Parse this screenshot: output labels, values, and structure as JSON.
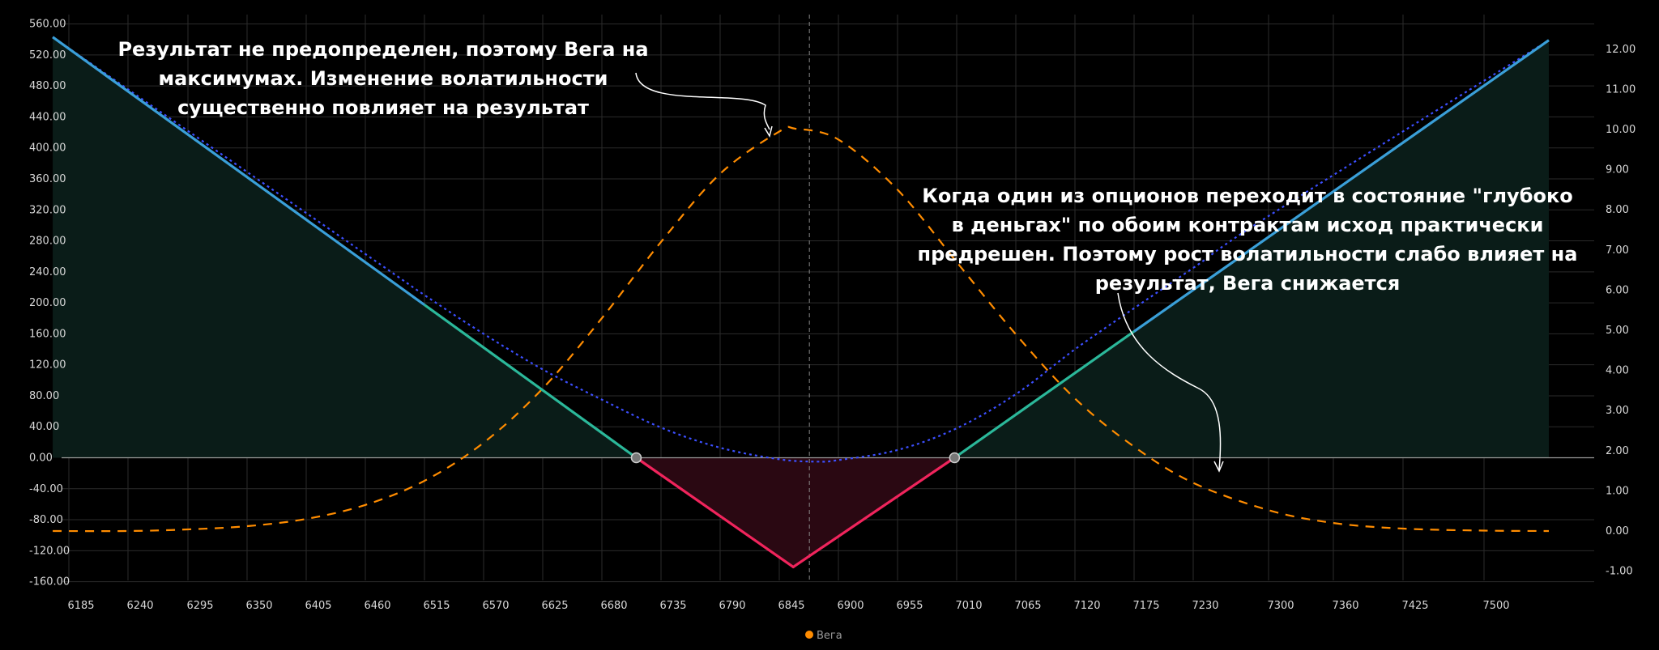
{
  "chart_data": {
    "type": "line",
    "x_ticks": [
      6185,
      6240,
      6295,
      6350,
      6405,
      6460,
      6515,
      6570,
      6625,
      6680,
      6735,
      6790,
      6845,
      6900,
      6955,
      7010,
      7065,
      7120,
      7175,
      7230,
      7300,
      7360,
      7425,
      7500
    ],
    "left_ticks": [
      "560.00",
      "520.00",
      "480.00",
      "440.00",
      "400.00",
      "360.00",
      "320.00",
      "280.00",
      "240.00",
      "200.00",
      "160.00",
      "120.00",
      "80.00",
      "40.00",
      "0.00",
      "-40.00",
      "-80.00",
      "-120.00",
      "-160.00"
    ],
    "right_ticks": [
      "12.00",
      "11.00",
      "10.00",
      "9.00",
      "8.00",
      "7.00",
      "6.00",
      "5.00",
      "4.00",
      "3.00",
      "2.00",
      "1.00",
      "0.00",
      "-1.00"
    ],
    "xlim": [
      6170,
      7560
    ],
    "ylim_left": [
      -160,
      560
    ],
    "ylim_right": [
      -1,
      12
    ],
    "strikes_breakeven": [
      6712,
      7008
    ],
    "expiry_min": {
      "x": 6858,
      "y": -141
    },
    "payoff_line": {
      "x": [
        6170,
        6712,
        6858,
        7008,
        7560
      ],
      "y": [
        543,
        0,
        -141,
        0,
        539
      ]
    },
    "current_pnl_curve": {
      "x": [
        6170,
        6460,
        6515,
        6570,
        6625,
        6680,
        6735,
        6790,
        6845,
        6880,
        6900,
        6955,
        7010,
        7065,
        7120,
        7175,
        7230,
        7300,
        7560
      ],
      "y": [
        543,
        263,
        210,
        160,
        114,
        75,
        39,
        13,
        -2,
        -5,
        -3,
        10,
        38,
        82,
        140,
        193,
        245,
        312,
        539
      ]
    },
    "current_price": 6873,
    "series": [
      {
        "name": "Вега",
        "color": "#ff8c00",
        "x": [
          6170,
          6240,
          6295,
          6350,
          6405,
          6460,
          6515,
          6570,
          6625,
          6680,
          6735,
          6790,
          6845,
          6860,
          6900,
          6955,
          7010,
          7065,
          7120,
          7175,
          7230,
          7300,
          7360,
          7425,
          7500,
          7560
        ],
        "y": [
          0,
          0,
          0.04,
          0.12,
          0.3,
          0.65,
          1.25,
          2.2,
          3.55,
          5.3,
          7.2,
          8.9,
          9.95,
          10.02,
          9.75,
          8.5,
          6.7,
          4.9,
          3.3,
          2.1,
          1.2,
          0.52,
          0.2,
          0.06,
          0.01,
          0
        ]
      }
    ],
    "annotations": [
      {
        "lines": [
          "Результат не предопределен, поэтому Вега на",
          "максимумах. Изменение волатильности",
          "существенно повлияет на результат"
        ]
      },
      {
        "lines": [
          "Когда один из опционов переходит в состояние \"глубоко",
          "в деньгах\" по обоим контрактам исход практически",
          "предрешен. Поэтому рост волатильности слабо влияет на",
          "результат, Вега снижается"
        ]
      }
    ],
    "legend": {
      "position": "bottom-center",
      "label": "Вега"
    },
    "grid": true
  },
  "colors": {
    "background": "#000000",
    "grid": "#2b2b2b",
    "zero_line": "#9a9a9a",
    "profit_line": "#2bb89a",
    "profit_line_outer": "#3a9fd8",
    "loss_line": "#f0245c",
    "profit_fill": "#0a1c18",
    "loss_fill": "#2a0812",
    "pnl_curve": "#3c4fff",
    "vega": "#ff8c00",
    "current_price_line": "#8a8a8a",
    "marker": "#777777"
  }
}
